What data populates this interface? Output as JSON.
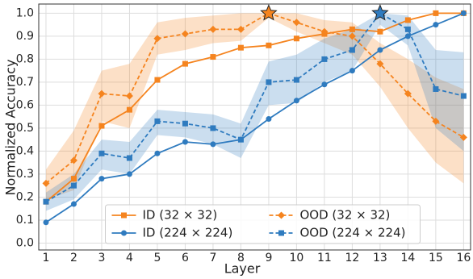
{
  "chart_data": {
    "type": "line",
    "x_label": "Layer",
    "y_label": "Normalized  Accuracy",
    "x": [
      1,
      2,
      3,
      4,
      5,
      6,
      7,
      8,
      9,
      10,
      11,
      12,
      13,
      14,
      15,
      16
    ],
    "xlim": [
      0.74,
      16.25
    ],
    "xticks": [
      1,
      2,
      3,
      4,
      5,
      6,
      7,
      8,
      9,
      10,
      11,
      12,
      13,
      14,
      15,
      16
    ],
    "ylim": [
      -0.03,
      1.04
    ],
    "yticks": [
      {
        "value": 0,
        "label": "0.0"
      },
      0.1,
      0.2,
      0.3,
      0.4,
      0.5,
      0.6,
      0.7,
      0.8,
      0.9,
      {
        "value": 1,
        "label": "1.0"
      }
    ],
    "grid": true,
    "legend": "lower center",
    "series": [
      {
        "name": "ID (32 × 32)",
        "color": "#f5841f",
        "dash": false,
        "marker": "square",
        "values": [
          0.18,
          0.28,
          0.51,
          0.58,
          0.71,
          0.78,
          0.81,
          0.85,
          0.86,
          0.89,
          0.91,
          0.93,
          0.92,
          0.97,
          1.0,
          1.0
        ]
      },
      {
        "name": "OOD (32 × 32)",
        "color": "#f5841f",
        "dash": true,
        "marker": "diamond",
        "highlight_max": true,
        "values": [
          0.26,
          0.36,
          0.65,
          0.64,
          0.89,
          0.91,
          0.93,
          0.93,
          1.0,
          0.96,
          0.92,
          0.9,
          0.78,
          0.65,
          0.53,
          0.46
        ],
        "band": {
          "lower": [
            0.19,
            0.23,
            0.53,
            0.5,
            0.82,
            0.84,
            0.87,
            0.88,
            0.98,
            0.92,
            0.87,
            0.82,
            0.68,
            0.5,
            0.35,
            0.26
          ],
          "upper": [
            0.32,
            0.49,
            0.75,
            0.78,
            0.96,
            0.98,
            0.99,
            1.0,
            1.0,
            1.0,
            0.97,
            0.96,
            0.87,
            0.8,
            0.72,
            0.67
          ]
        }
      },
      {
        "name": "ID (224 × 224)",
        "color": "#2f7bbf",
        "dash": false,
        "marker": "circle",
        "values": [
          0.09,
          0.17,
          0.28,
          0.3,
          0.39,
          0.44,
          0.43,
          0.45,
          0.54,
          0.62,
          0.69,
          0.75,
          0.84,
          0.9,
          0.95,
          1.0
        ]
      },
      {
        "name": "OOD (224 × 224)",
        "color": "#2f7bbf",
        "dash": true,
        "marker": "square",
        "highlight_max": true,
        "values": [
          0.18,
          0.25,
          0.39,
          0.37,
          0.53,
          0.52,
          0.5,
          0.45,
          0.7,
          0.71,
          0.8,
          0.84,
          1.0,
          0.93,
          0.67,
          0.64
        ],
        "band": {
          "lower": [
            0.14,
            0.19,
            0.32,
            0.3,
            0.47,
            0.46,
            0.43,
            0.37,
            0.6,
            0.61,
            0.7,
            0.75,
            0.95,
            0.86,
            0.5,
            0.4
          ],
          "upper": [
            0.22,
            0.3,
            0.45,
            0.44,
            0.58,
            0.57,
            0.56,
            0.52,
            0.79,
            0.82,
            0.89,
            0.93,
            1.0,
            0.99,
            0.84,
            0.83
          ]
        }
      }
    ]
  }
}
